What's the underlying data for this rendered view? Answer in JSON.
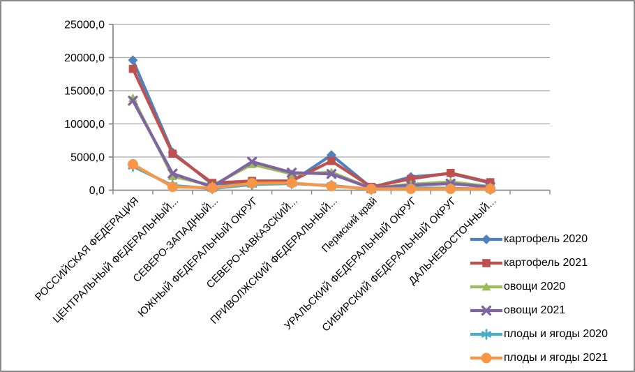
{
  "chart_data": {
    "type": "line",
    "title": "",
    "grid": true,
    "legend_position": "right",
    "x_slots": 11,
    "categories": [
      "РОССИЙСКАЯ ФЕДЕРАЦИЯ",
      "ЦЕНТРАЛЬНЫЙ ФЕДЕРАЛЬНЫЙ...",
      "СЕВЕРО-ЗАПАДНЫЙ...",
      "ЮЖНЫЙ ФЕДЕРАЛЬНЫЙ ОКРУГ",
      "СЕВЕРО-КАВКАЗСКИЙ...",
      "ПРИВОЛЖСКИЙ ФЕДЕРАЛЬНЫЙ...",
      "Пермский край",
      "УРАЛЬСКИЙ ФЕДЕРАЛЬНЫЙ ОКРУГ",
      "СИБИРСКИЙ ФЕДЕРАЛЬНЫЙ ОКРУГ",
      "ДАЛЬНЕВОСТОЧНЫЙ..."
    ],
    "y_axis": {
      "min": 0,
      "max": 25000,
      "step": 5000,
      "tick_labels": [
        "0,0",
        "5000,0",
        "10000,0",
        "15000,0",
        "20000,0",
        "25000,0"
      ]
    },
    "series": [
      {
        "id": "kartofel-2020",
        "name": "картофель 2020",
        "color": "#4F81BD",
        "marker": "diamond",
        "values": [
          19600,
          5700,
          900,
          1200,
          1300,
          5300,
          400,
          2000,
          2500,
          1100
        ]
      },
      {
        "id": "kartofel-2021",
        "name": "картофель 2021",
        "color": "#C0504D",
        "marker": "square",
        "values": [
          18300,
          5500,
          1100,
          1400,
          1400,
          4400,
          500,
          1700,
          2600,
          1200
        ]
      },
      {
        "id": "ovoshchi-2020",
        "name": "овощи 2020",
        "color": "#9BBB59",
        "marker": "triangle",
        "values": [
          13900,
          2100,
          700,
          3900,
          2450,
          2700,
          300,
          900,
          1250,
          550
        ]
      },
      {
        "id": "ovoshchi-2021",
        "name": "овощи 2021",
        "color": "#8064A2",
        "marker": "x",
        "values": [
          13500,
          2500,
          500,
          4300,
          2650,
          2450,
          300,
          750,
          1000,
          450
        ]
      },
      {
        "id": "plody-yagody-2020",
        "name": "плоды и ягоды 2020",
        "color": "#4BACC6",
        "marker": "asterisk",
        "values": [
          3600,
          700,
          250,
          850,
          1000,
          700,
          150,
          350,
          300,
          150
        ]
      },
      {
        "id": "plody-yagody-2021",
        "name": "плоды и ягоды 2021",
        "color": "#F79646",
        "marker": "circle",
        "values": [
          3900,
          500,
          350,
          1050,
          1100,
          600,
          200,
          200,
          200,
          200
        ]
      }
    ]
  },
  "colors": {
    "grid": "#A8A8A8",
    "axis": "#8C8C8C",
    "frame_border": "#898989",
    "text": "#000000",
    "background": "#FFFFFF"
  }
}
